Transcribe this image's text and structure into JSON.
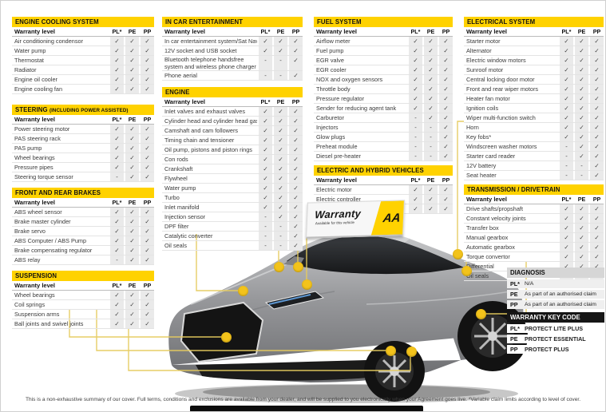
{
  "accent": {
    "aa_yellow": "#FFD200",
    "dot_gold": "#F3C31B",
    "keycode_header_bg": "#161616",
    "diagnosis_header_bg": "#d6d6d6"
  },
  "subheader_label": "Warranty level",
  "level_columns": [
    "PL*",
    "PE",
    "PP"
  ],
  "tables": [
    {
      "title": "ENGINE COOLING SYSTEM",
      "suffix": "",
      "rows": [
        [
          "Air conditioning condensor",
          "✓",
          "✓",
          "✓"
        ],
        [
          "Water pump",
          "✓",
          "✓",
          "✓"
        ],
        [
          "Thermostat",
          "✓",
          "✓",
          "✓"
        ],
        [
          "Radiator",
          "✓",
          "✓",
          "✓"
        ],
        [
          "Engine oil cooler",
          "✓",
          "✓",
          "✓"
        ],
        [
          "Engine cooling fan",
          "✓",
          "✓",
          "✓"
        ]
      ]
    },
    {
      "title": "STEERING",
      "suffix": "(INCLUDING POWER ASSISTED)",
      "rows": [
        [
          "Power steering motor",
          "✓",
          "✓",
          "✓"
        ],
        [
          "PAS steering rack",
          "✓",
          "✓",
          "✓"
        ],
        [
          "PAS pump",
          "✓",
          "✓",
          "✓"
        ],
        [
          "Wheel bearings",
          "✓",
          "✓",
          "✓"
        ],
        [
          "Pressure pipes",
          "✓",
          "✓",
          "✓"
        ],
        [
          "Steering torque sensor",
          "-",
          "✓",
          "✓"
        ]
      ]
    },
    {
      "title": "FRONT AND REAR BRAKES",
      "suffix": "",
      "rows": [
        [
          "ABS wheel sensor",
          "✓",
          "✓",
          "✓"
        ],
        [
          "Brake master cylinder",
          "✓",
          "✓",
          "✓"
        ],
        [
          "Brake servo",
          "✓",
          "✓",
          "✓"
        ],
        [
          "ABS Computer / ABS Pump",
          "✓",
          "✓",
          "✓"
        ],
        [
          "Brake compensating regulator",
          "✓",
          "✓",
          "✓"
        ],
        [
          "ABS relay",
          "-",
          "✓",
          "✓"
        ]
      ]
    },
    {
      "title": "SUSPENSION",
      "suffix": "",
      "rows": [
        [
          "Wheel bearings",
          "✓",
          "✓",
          "✓"
        ],
        [
          "Coil springs",
          "✓",
          "✓",
          "✓"
        ],
        [
          "Suspension arms",
          "✓",
          "✓",
          "✓"
        ],
        [
          "Ball joints and swivel joints",
          "✓",
          "✓",
          "✓"
        ]
      ]
    },
    {
      "title": "IN CAR ENTERTAINMENT",
      "suffix": "",
      "rows": [
        [
          "In car entertainment system/Sat Nav*",
          "✓",
          "✓",
          "✓"
        ],
        [
          "12V socket and USB socket",
          "✓",
          "✓",
          "✓"
        ],
        [
          "Bluetooth telephone handsfree system and wireless phone charger",
          "-",
          "-",
          "✓"
        ],
        [
          "Phone aerial",
          "-",
          "-",
          "✓"
        ]
      ]
    },
    {
      "title": "ENGINE",
      "suffix": "",
      "rows": [
        [
          "Inlet valves and exhaust valves",
          "✓",
          "✓",
          "✓"
        ],
        [
          "Cylinder head and cylinder head gasket",
          "✓",
          "✓",
          "✓"
        ],
        [
          "Camshaft and cam followers",
          "✓",
          "✓",
          "✓"
        ],
        [
          "Timing chain and tensioner",
          "✓",
          "✓",
          "✓"
        ],
        [
          "Oil pump, pistons and piston rings",
          "✓",
          "✓",
          "✓"
        ],
        [
          "Con rods",
          "✓",
          "✓",
          "✓"
        ],
        [
          "Crankshaft",
          "✓",
          "✓",
          "✓"
        ],
        [
          "Flywheel",
          "✓",
          "✓",
          "✓"
        ],
        [
          "Water pump",
          "✓",
          "✓",
          "✓"
        ],
        [
          "Turbo",
          "✓",
          "✓",
          "✓"
        ],
        [
          "Inlet manifold",
          "✓",
          "✓",
          "✓"
        ],
        [
          "Injection sensor",
          "-",
          "✓",
          "✓"
        ],
        [
          "DPF filter",
          "-",
          "-",
          "✓"
        ],
        [
          "Catalytic converter",
          "-",
          "-",
          "✓"
        ],
        [
          "Oil seals",
          "-",
          "-",
          "✓"
        ]
      ]
    },
    {
      "title": "FUEL SYSTEM",
      "suffix": "",
      "rows": [
        [
          "Airflow meter",
          "✓",
          "✓",
          "✓"
        ],
        [
          "Fuel pump",
          "✓",
          "✓",
          "✓"
        ],
        [
          "EGR valve",
          "✓",
          "✓",
          "✓"
        ],
        [
          "EGR cooler",
          "✓",
          "✓",
          "✓"
        ],
        [
          "NOX and oxygen sensors",
          "✓",
          "✓",
          "✓"
        ],
        [
          "Throttle body",
          "✓",
          "✓",
          "✓"
        ],
        [
          "Pressure regulator",
          "✓",
          "✓",
          "✓"
        ],
        [
          "Sender for reducing agent tank",
          "✓",
          "✓",
          "✓"
        ],
        [
          "Carburetor",
          "-",
          "✓",
          "✓"
        ],
        [
          "Injectors",
          "-",
          "-",
          "✓"
        ],
        [
          "Glow plugs",
          "-",
          "-",
          "✓"
        ],
        [
          "Preheat module",
          "-",
          "-",
          "✓"
        ],
        [
          "Diesel pre-heater",
          "-",
          "-",
          "✓"
        ]
      ]
    },
    {
      "title": "ELECTRIC AND HYBRID VEHICLES",
      "suffix": "",
      "rows": [
        [
          "Electric motor",
          "✓",
          "✓",
          "✓"
        ],
        [
          "Electric controller",
          "✓",
          "✓",
          "✓"
        ],
        [
          "AC/DC converter",
          "✓",
          "✓",
          "✓"
        ]
      ]
    },
    {
      "title": "ELECTRICAL SYSTEM",
      "suffix": "",
      "rows": [
        [
          "Starter motor",
          "✓",
          "✓",
          "✓"
        ],
        [
          "Alternator",
          "✓",
          "✓",
          "✓"
        ],
        [
          "Electric window motors",
          "✓",
          "✓",
          "✓"
        ],
        [
          "Sunroof motor",
          "✓",
          "✓",
          "✓"
        ],
        [
          "Central locking door motor",
          "✓",
          "✓",
          "✓"
        ],
        [
          "Front and rear wiper motors",
          "✓",
          "✓",
          "✓"
        ],
        [
          "Heater fan motor",
          "✓",
          "✓",
          "✓"
        ],
        [
          "Ignition coils",
          "✓",
          "✓",
          "✓"
        ],
        [
          "Wiper multi-function switch",
          "✓",
          "✓",
          "✓"
        ],
        [
          "Horn",
          "✓",
          "✓",
          "✓"
        ],
        [
          "Key fobs*",
          "✓",
          "✓",
          "✓"
        ],
        [
          "Windscreen washer motors",
          "-",
          "✓",
          "✓"
        ],
        [
          "Starter card reader",
          "-",
          "✓",
          "✓"
        ],
        [
          "12V battery",
          "-",
          "-",
          "✓"
        ],
        [
          "Seat heater",
          "-",
          "-",
          "✓"
        ]
      ]
    },
    {
      "title": "TRANSMISSION / DRIVETRAIN",
      "suffix": "",
      "rows": [
        [
          "Drive shafts/propshaft",
          "✓",
          "✓",
          "✓"
        ],
        [
          "Constant velocity joints",
          "✓",
          "✓",
          "✓"
        ],
        [
          "Transfer box",
          "✓",
          "✓",
          "✓"
        ],
        [
          "Manual gearbox",
          "✓",
          "✓",
          "✓"
        ],
        [
          "Automatic gearbox",
          "✓",
          "✓",
          "✓"
        ],
        [
          "Torque convertor",
          "✓",
          "✓",
          "✓"
        ],
        [
          "Differential",
          "✓",
          "✓",
          "✓"
        ],
        [
          "Oil seals",
          "-",
          "-",
          "✓"
        ]
      ]
    }
  ],
  "diagnosis": {
    "title": "DIAGNOSIS",
    "rows": [
      [
        "PL*",
        "N/A"
      ],
      [
        "PE",
        "As part of an authorised claim"
      ],
      [
        "PP",
        "As part of an authorised claim"
      ]
    ]
  },
  "keycode": {
    "title": "WARRANTY KEY CODE",
    "rows": [
      [
        "PL*",
        "PROTECT LITE PLUS"
      ],
      [
        "PE",
        "PROTECT ESSENTIAL"
      ],
      [
        "PP",
        "PROTECT PLUS"
      ]
    ]
  },
  "sign": {
    "title": "Warranty",
    "subtitle": "Available for this vehicle",
    "logo": "AA"
  },
  "footer": {
    "disclaimer": "This is a non-exhaustive summary of our cover. Full terms, conditions and exclusions are available from your dealer, and will be supplied to you electronically when your Agreement goes live. *Variable claim  limits according to level of cover."
  }
}
